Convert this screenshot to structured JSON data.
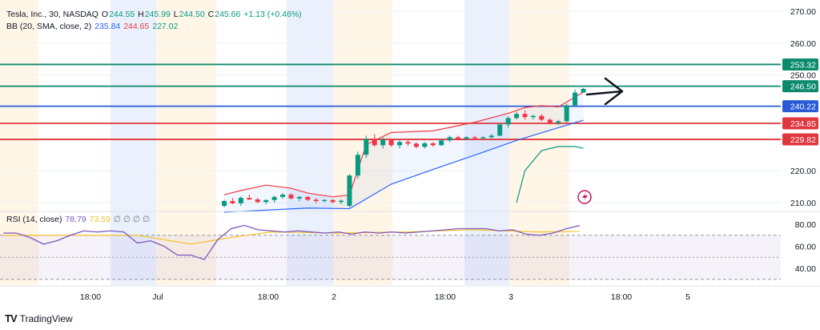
{
  "header": {
    "symbol": "Tesla, Inc., 30, NASDAQ",
    "o_label": "O",
    "o_value": "244.55",
    "h_label": "H",
    "h_value": "245.99",
    "l_label": "L",
    "l_value": "244.50",
    "c_label": "C",
    "c_value": "245.66",
    "change": "+1.13 (+0.46%)"
  },
  "bb_legend": {
    "label": "BB (20, SMA, close, 2)",
    "basis": "235.84",
    "upper": "244.65",
    "lower": "227.02"
  },
  "rsi_legend": {
    "label": "RSI (14, close)",
    "rsi": "78.79",
    "ma": "73.59",
    "extra": "∅ ∅ ∅ ∅"
  },
  "price_axis": {
    "ticks": [
      "270.00",
      "260.00",
      "250.00",
      "220.00",
      "210.00"
    ]
  },
  "rsi_axis": {
    "ticks": [
      "80.00",
      "60.00",
      "40.00"
    ]
  },
  "time_axis": {
    "ticks": [
      "18:00",
      "Jul",
      "18:00",
      "2",
      "18:00",
      "3",
      "18:00",
      "5"
    ]
  },
  "levels": [
    {
      "price": 253.32,
      "label": "253.32",
      "color": "#0b8a6c"
    },
    {
      "price": 246.5,
      "label": "246.50",
      "color": "#0b8a6c"
    },
    {
      "price": 240.22,
      "label": "240.22",
      "color": "#2a5bd7"
    },
    {
      "price": 234.85,
      "label": "234.85",
      "color": "#e0363d"
    },
    {
      "price": 229.82,
      "label": "229.82",
      "color": "#e0363d"
    }
  ],
  "colors": {
    "up": "#089981",
    "down": "#f23645",
    "bb_basis": "#2962ff",
    "bb_upper": "#f23645",
    "bb_lower": "#089981",
    "rsi": "#7e57c2",
    "rsi_ma": "#f4c430"
  },
  "brand": {
    "name": "TradingView"
  },
  "chart_data": {
    "type": "candlestick",
    "price_ticks": [
      270,
      260,
      250,
      220,
      210
    ],
    "candles": [
      [
        209.0,
        211.0,
        208.5,
        210.5
      ],
      [
        210.5,
        211.5,
        209.5,
        209.8
      ],
      [
        209.8,
        212.0,
        209.0,
        211.5
      ],
      [
        211.5,
        212.5,
        210.8,
        211.0
      ],
      [
        211.0,
        211.5,
        209.8,
        210.2
      ],
      [
        210.2,
        211.0,
        209.5,
        210.8
      ],
      [
        210.8,
        212.2,
        210.0,
        211.8
      ],
      [
        211.8,
        213.0,
        211.2,
        212.5
      ],
      [
        212.5,
        213.0,
        211.0,
        211.3
      ],
      [
        211.3,
        212.0,
        210.5,
        211.8
      ],
      [
        211.8,
        212.0,
        210.5,
        210.9
      ],
      [
        210.9,
        211.5,
        209.8,
        210.5
      ],
      [
        210.5,
        211.2,
        210.0,
        210.8
      ],
      [
        210.8,
        211.0,
        209.8,
        210.2
      ],
      [
        210.2,
        211.0,
        209.5,
        210.6
      ],
      [
        209.0,
        219.0,
        208.5,
        218.5
      ],
      [
        218.5,
        226.0,
        217.5,
        225.0
      ],
      [
        225.0,
        231.0,
        224.0,
        230.0
      ],
      [
        230.0,
        231.5,
        227.5,
        228.0
      ],
      [
        228.0,
        230.5,
        227.0,
        229.8
      ],
      [
        229.8,
        230.0,
        227.5,
        228.0
      ],
      [
        228.0,
        229.5,
        227.0,
        229.0
      ],
      [
        229.0,
        230.0,
        227.8,
        228.5
      ],
      [
        228.5,
        229.0,
        227.0,
        227.5
      ],
      [
        227.5,
        229.0,
        227.0,
        228.6
      ],
      [
        228.6,
        229.0,
        227.5,
        228.0
      ],
      [
        228.0,
        230.0,
        227.8,
        229.5
      ],
      [
        229.5,
        231.0,
        229.0,
        230.5
      ],
      [
        230.5,
        231.0,
        229.5,
        230.0
      ],
      [
        230.0,
        230.8,
        229.5,
        230.5
      ],
      [
        230.5,
        231.0,
        230.0,
        230.2
      ],
      [
        230.2,
        230.8,
        229.8,
        230.5
      ],
      [
        230.5,
        231.5,
        230.2,
        231.0
      ],
      [
        231.0,
        235.0,
        230.8,
        234.5
      ],
      [
        234.5,
        237.0,
        233.5,
        236.5
      ],
      [
        236.5,
        238.5,
        236.0,
        237.8
      ],
      [
        237.8,
        239.0,
        236.0,
        236.8
      ],
      [
        236.8,
        237.5,
        236.0,
        237.2
      ],
      [
        237.2,
        237.8,
        235.5,
        236.0
      ],
      [
        236.0,
        236.5,
        234.5,
        235.0
      ],
      [
        235.0,
        236.0,
        234.3,
        235.5
      ],
      [
        235.5,
        241.0,
        235.0,
        240.5
      ],
      [
        240.5,
        245.5,
        240.0,
        244.5
      ],
      [
        244.55,
        245.99,
        244.5,
        245.66
      ]
    ],
    "bb_basis": [
      [
        0,
        207.0
      ],
      [
        10,
        208.3
      ],
      [
        15,
        208.1
      ],
      [
        20,
        215.8
      ],
      [
        25,
        220.4
      ],
      [
        30,
        224.9
      ],
      [
        35,
        229.5
      ],
      [
        40,
        233.5
      ],
      [
        43,
        235.84
      ]
    ],
    "bb_upper": [
      [
        0,
        212.5
      ],
      [
        2,
        213.8
      ],
      [
        5,
        215.5
      ],
      [
        8,
        214.5
      ],
      [
        10,
        213.0
      ],
      [
        13,
        211.8
      ],
      [
        15,
        212.4
      ],
      [
        17,
        228.2
      ],
      [
        20,
        232.0
      ],
      [
        25,
        232.5
      ],
      [
        30,
        235.2
      ],
      [
        34,
        238.0
      ],
      [
        36,
        239.8
      ],
      [
        38,
        240.4
      ],
      [
        40,
        240.0
      ],
      [
        43,
        244.65
      ]
    ],
    "bb_lower": [
      [
        35,
        210.0
      ],
      [
        36,
        220.0
      ],
      [
        38,
        226.3
      ],
      [
        40,
        227.6
      ],
      [
        42,
        227.6
      ],
      [
        43,
        227.02
      ]
    ],
    "rsi": [
      [
        0,
        72
      ],
      [
        1,
        72
      ],
      [
        2,
        68
      ],
      [
        3,
        62
      ],
      [
        4,
        65
      ],
      [
        5,
        70
      ],
      [
        6,
        74
      ],
      [
        7,
        73
      ],
      [
        8,
        74
      ],
      [
        9,
        73
      ],
      [
        10,
        63
      ],
      [
        11,
        65
      ],
      [
        12,
        60
      ],
      [
        13,
        52
      ],
      [
        14,
        52
      ],
      [
        15,
        48
      ],
      [
        16,
        66
      ],
      [
        17,
        76
      ],
      [
        18,
        79
      ],
      [
        19,
        75
      ],
      [
        20,
        74
      ],
      [
        21,
        73
      ],
      [
        22,
        74
      ],
      [
        23,
        73
      ],
      [
        24,
        72
      ],
      [
        25,
        73
      ],
      [
        26,
        71
      ],
      [
        27,
        73
      ],
      [
        28,
        72
      ],
      [
        29,
        73
      ],
      [
        30,
        72
      ],
      [
        31,
        73
      ],
      [
        32,
        74
      ],
      [
        33,
        75
      ],
      [
        34,
        76
      ],
      [
        35,
        76
      ],
      [
        36,
        76
      ],
      [
        37,
        74
      ],
      [
        38,
        75
      ],
      [
        39,
        71
      ],
      [
        40,
        70
      ],
      [
        41,
        72
      ],
      [
        42,
        76
      ],
      [
        43,
        78.79
      ]
    ],
    "rsi_ma": [
      [
        0,
        70
      ],
      [
        10,
        70
      ],
      [
        14,
        62
      ],
      [
        15,
        64
      ],
      [
        17,
        68
      ],
      [
        20,
        73
      ],
      [
        25,
        72
      ],
      [
        30,
        73
      ],
      [
        35,
        75
      ],
      [
        40,
        73
      ],
      [
        43,
        73.59
      ]
    ],
    "rsi_ticks": [
      80,
      60,
      40
    ],
    "session_bands": [
      "Jul",
      "2",
      "3"
    ]
  }
}
